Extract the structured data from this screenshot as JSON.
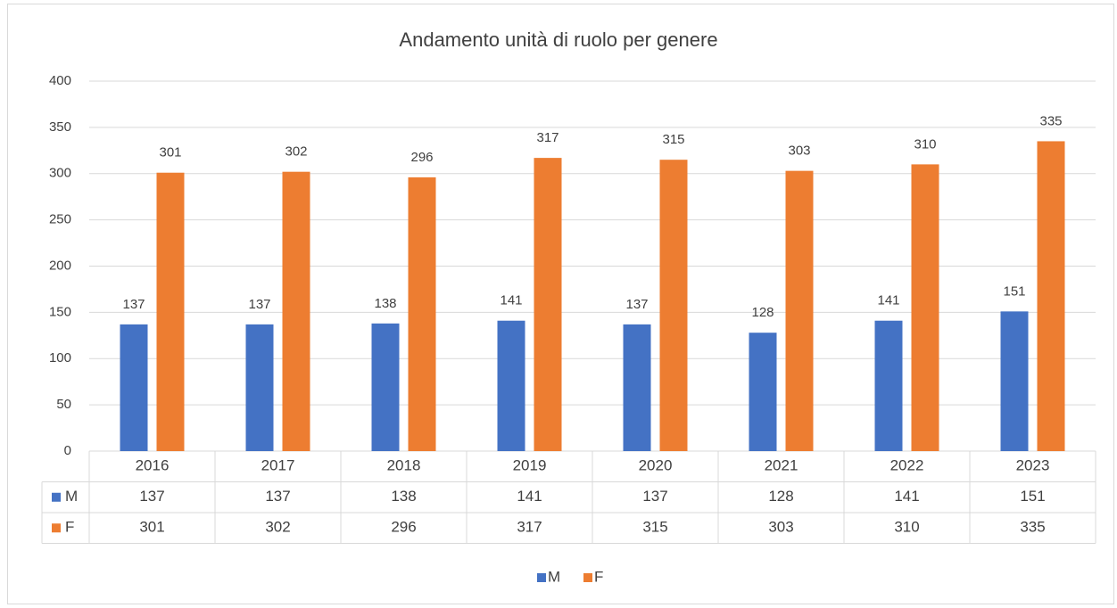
{
  "chart_data": {
    "type": "bar",
    "title": "Andamento unità di ruolo per genere",
    "categories": [
      "2016",
      "2017",
      "2018",
      "2019",
      "2020",
      "2021",
      "2022",
      "2023"
    ],
    "series": [
      {
        "name": "M",
        "color": "#4472c4",
        "values": [
          137,
          137,
          138,
          141,
          137,
          128,
          141,
          151
        ]
      },
      {
        "name": "F",
        "color": "#ed7d31",
        "values": [
          301,
          302,
          296,
          317,
          315,
          303,
          310,
          335
        ]
      }
    ],
    "ylim": [
      0,
      400
    ],
    "yticks": [
      0,
      50,
      100,
      150,
      200,
      250,
      300,
      350,
      400
    ],
    "grid": true,
    "legend": "bottom"
  }
}
